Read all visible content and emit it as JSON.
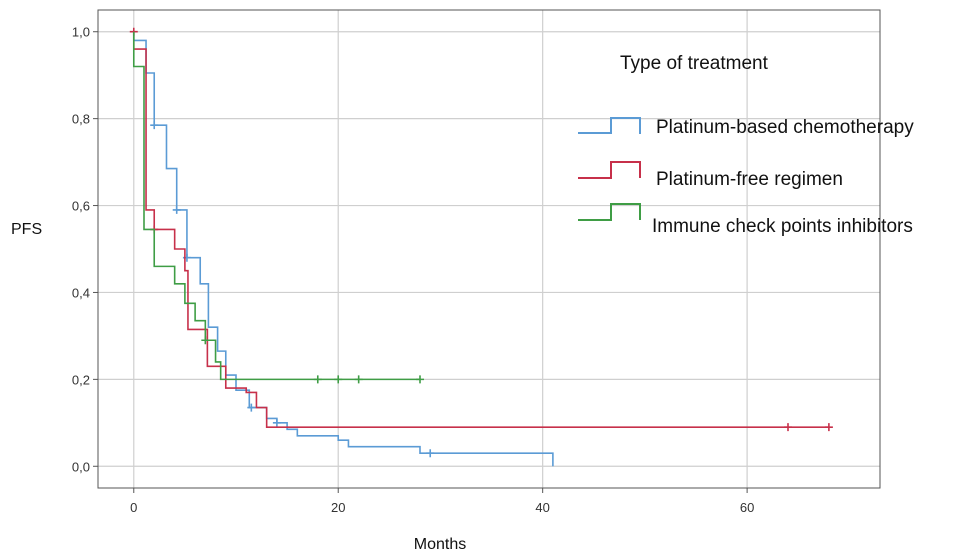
{
  "chart_data": {
    "type": "line",
    "title": "",
    "xlabel": "Months",
    "ylabel": "PFS",
    "xlim": [
      -3.5,
      73
    ],
    "ylim": [
      -0.05,
      1.05
    ],
    "x_ticks": [
      0,
      20,
      40,
      60
    ],
    "x_tick_labels": [
      "0",
      "20",
      "40",
      "60"
    ],
    "y_ticks": [
      0,
      0.2,
      0.4,
      0.6,
      0.8,
      1.0
    ],
    "y_tick_labels": [
      "0,0",
      "0,2",
      "0,4",
      "0,6",
      "0,8",
      "1,0"
    ],
    "grid": true,
    "legend": {
      "title": "Type of treatment",
      "placement": "top-right"
    },
    "series": [
      {
        "name": "Platinum-based chemotherapy",
        "color": "#5b9bd5",
        "steps": [
          [
            0,
            0.98
          ],
          [
            1.2,
            0.905
          ],
          [
            2,
            0.785
          ],
          [
            3.2,
            0.685
          ],
          [
            4.2,
            0.59
          ],
          [
            5.2,
            0.48
          ],
          [
            6.5,
            0.42
          ],
          [
            7.3,
            0.32
          ],
          [
            8.2,
            0.265
          ],
          [
            9,
            0.21
          ],
          [
            10,
            0.175
          ],
          [
            11.3,
            0.135
          ],
          [
            13,
            0.11
          ],
          [
            14,
            0.1
          ],
          [
            15,
            0.085
          ],
          [
            16,
            0.07
          ],
          [
            20,
            0.06
          ],
          [
            21,
            0.045
          ],
          [
            28,
            0.03
          ],
          [
            41,
            0.0
          ]
        ],
        "end_x": 41,
        "censored": [
          [
            2,
            0.785
          ],
          [
            4.2,
            0.59
          ],
          [
            5.2,
            0.48
          ],
          [
            11.5,
            0.135
          ],
          [
            14,
            0.1
          ],
          [
            29,
            0.03
          ]
        ]
      },
      {
        "name": "Platinum-free regimen",
        "color": "#c7304a",
        "steps": [
          [
            0,
            0.96
          ],
          [
            1.2,
            0.59
          ],
          [
            2,
            0.545
          ],
          [
            4,
            0.5
          ],
          [
            5,
            0.45
          ],
          [
            5.3,
            0.315
          ],
          [
            7.2,
            0.23
          ],
          [
            9,
            0.18
          ],
          [
            11,
            0.17
          ],
          [
            12,
            0.135
          ],
          [
            13,
            0.09
          ]
        ],
        "end_x": 68,
        "censored": [
          [
            0,
            1.0
          ],
          [
            2,
            0.545
          ],
          [
            64,
            0.09
          ],
          [
            68,
            0.09
          ]
        ]
      },
      {
        "name": "Immune check points inhibitors",
        "color": "#3f9d45",
        "steps": [
          [
            0,
            0.92
          ],
          [
            1,
            0.545
          ],
          [
            2,
            0.46
          ],
          [
            4,
            0.42
          ],
          [
            5,
            0.375
          ],
          [
            6,
            0.335
          ],
          [
            7,
            0.29
          ],
          [
            8,
            0.24
          ],
          [
            8.5,
            0.2
          ]
        ],
        "end_x": 28,
        "censored": [
          [
            7,
            0.29
          ],
          [
            18,
            0.2
          ],
          [
            20,
            0.2
          ],
          [
            22,
            0.2
          ],
          [
            28,
            0.2
          ]
        ]
      }
    ]
  }
}
